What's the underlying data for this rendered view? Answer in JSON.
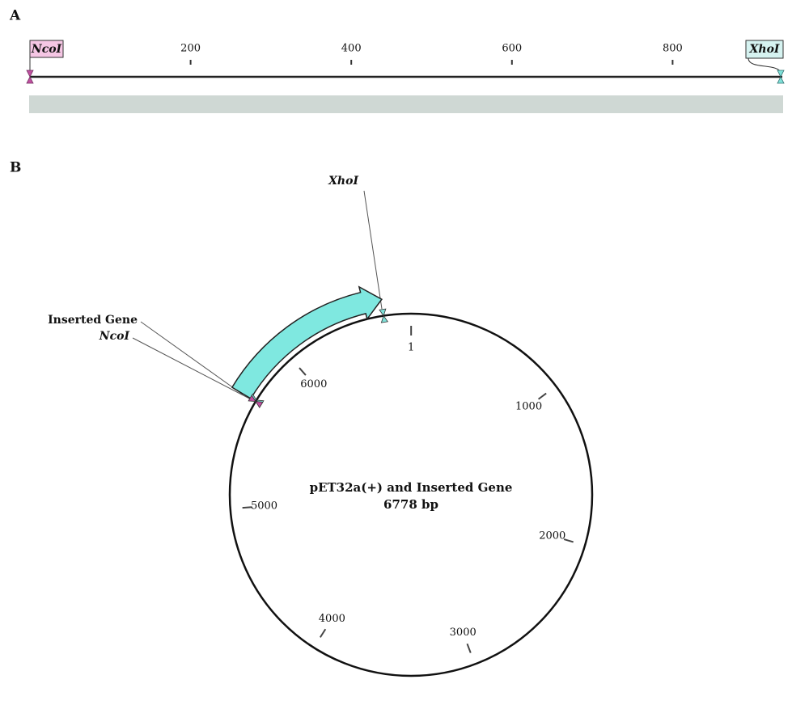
{
  "panel_a": {
    "label": "A",
    "ruler_ticks": [
      200,
      400,
      600,
      800
    ],
    "sites": [
      {
        "name": "NcoI"
      },
      {
        "name": "XhoI"
      }
    ]
  },
  "panel_b": {
    "label": "B",
    "title": "pET32a(+) and Inserted Gene",
    "length": {
      "value": 6778,
      "label": "6778 bp"
    },
    "ticks": [
      1,
      1000,
      2000,
      3000,
      4000,
      5000,
      6000
    ],
    "feature": "Inserted Gene",
    "sites": [
      {
        "name": "XhoI"
      },
      {
        "name": "NcoI"
      }
    ]
  }
}
